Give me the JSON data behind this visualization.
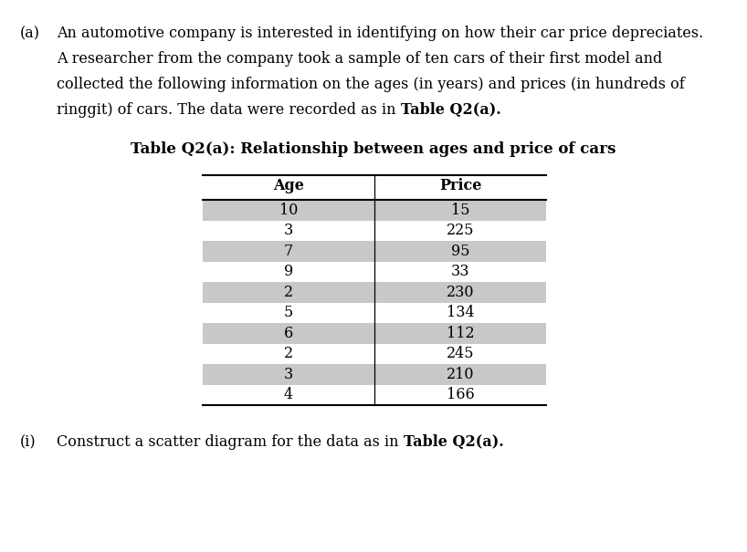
{
  "part_label": "(a)",
  "para_lines": [
    "An automotive company is interested in identifying on how their car price depreciates.",
    "A researcher from the company took a sample of ten cars of their first model and",
    "collected the following information on the ages (in years) and prices (in hundreds of",
    [
      "ringgit) of cars. The data were recorded as in ",
      "Table Q2(a)."
    ]
  ],
  "table_title": "Table Q2(a): Relationship between ages and price of cars",
  "col_headers": [
    "Age",
    "Price"
  ],
  "ages": [
    10,
    3,
    7,
    9,
    2,
    5,
    6,
    2,
    3,
    4
  ],
  "prices": [
    15,
    225,
    95,
    33,
    230,
    134,
    112,
    245,
    210,
    166
  ],
  "subpart_label": "(i)",
  "subpart_normal": "Construct a scatter diagram for the data as in ",
  "subpart_bold": "Table Q2(a).",
  "bg_color_odd": "#c8c8c8",
  "bg_color_even": "#ffffff",
  "font_size": 11.5,
  "font_family": "DejaVu Serif"
}
